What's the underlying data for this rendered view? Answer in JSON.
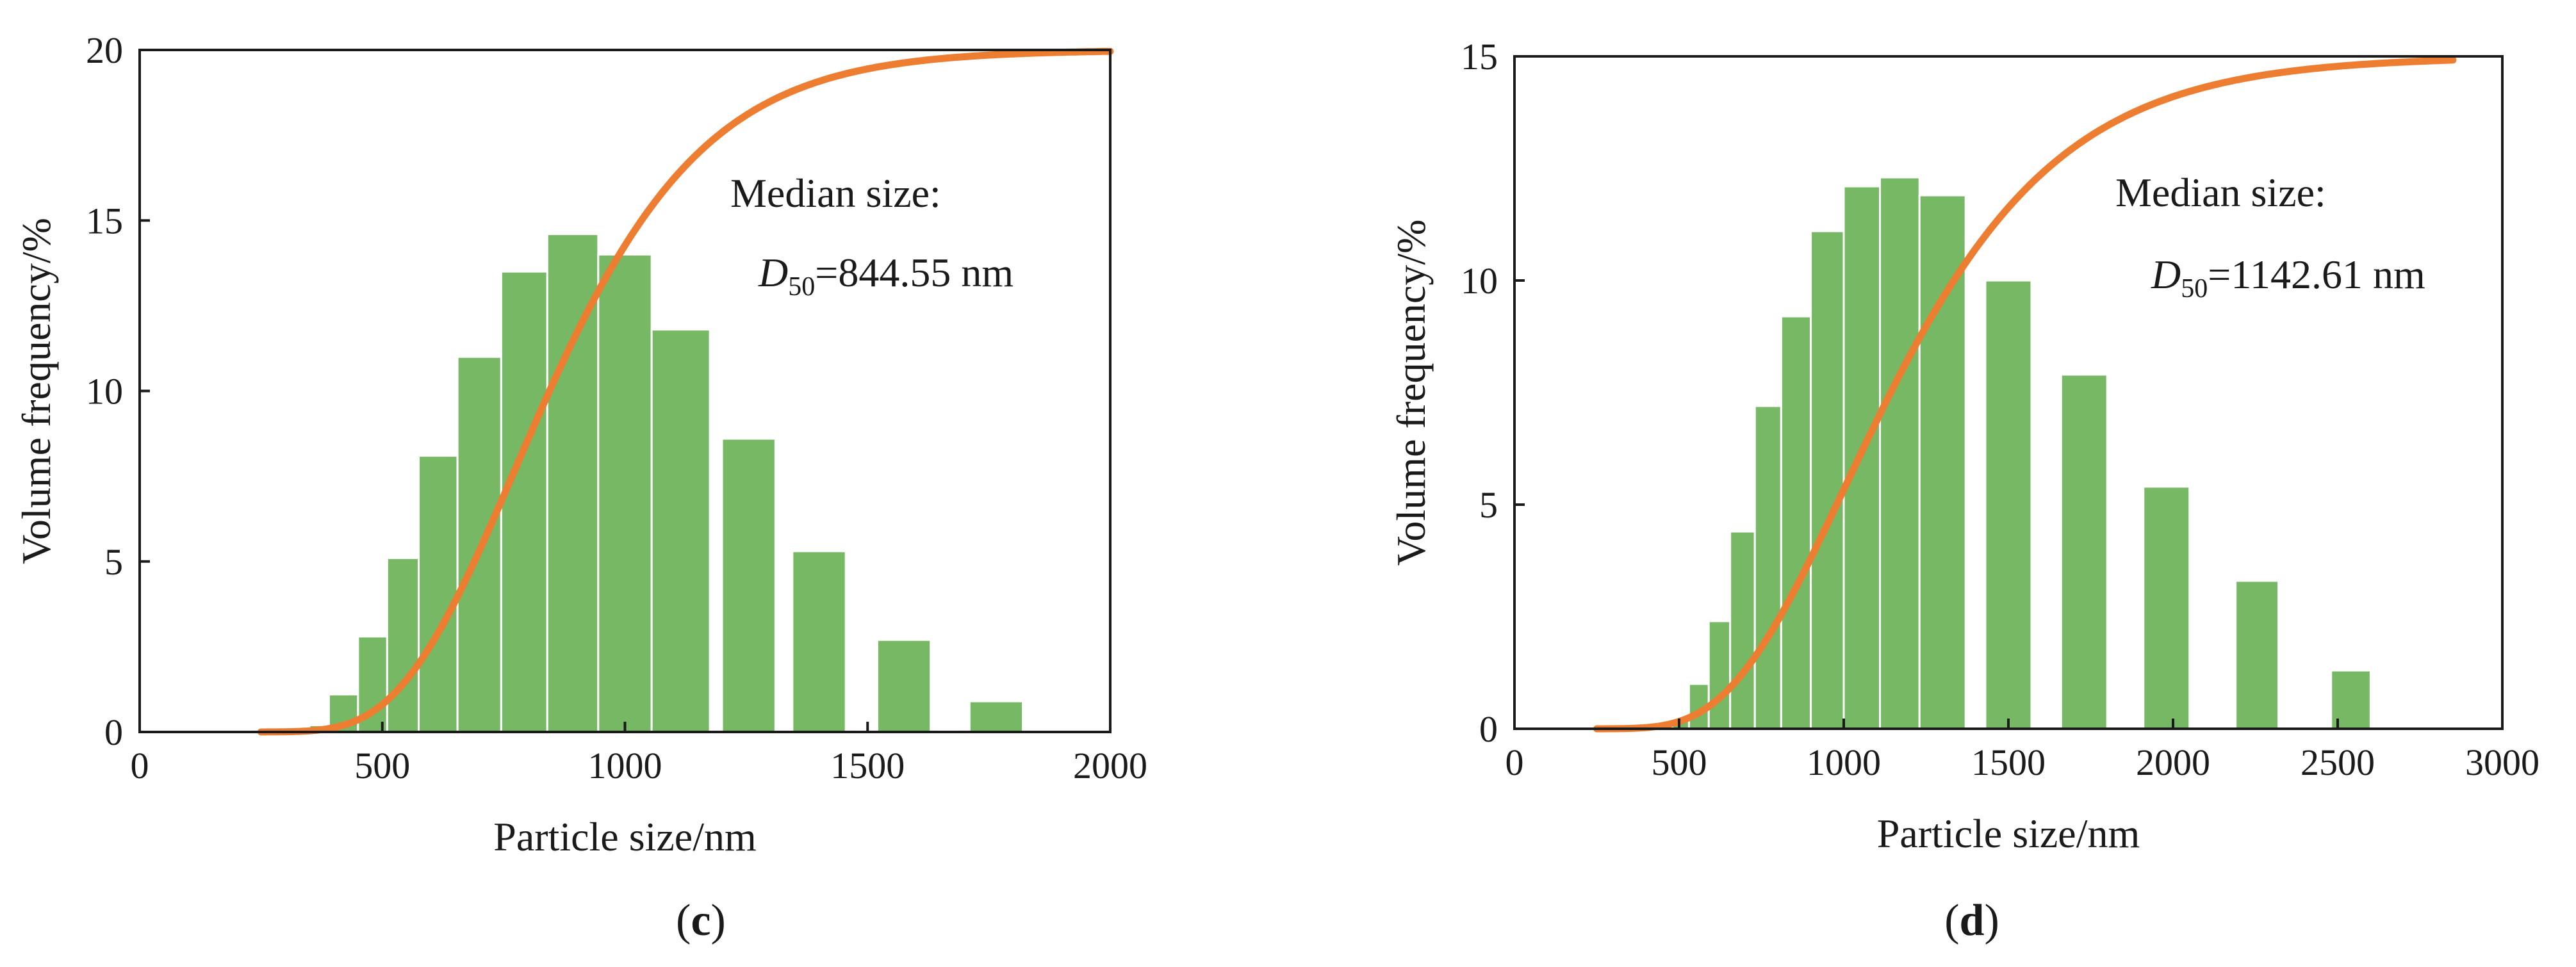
{
  "colors": {
    "bar": "#77b864",
    "curve": "#ed7d31",
    "axis": "#1a1a1a"
  },
  "chart_data": [
    {
      "type": "bar",
      "panel_label": "c",
      "xlabel": "Particle size/nm",
      "ylabel": "Volume frequency/%",
      "xlim": [
        0,
        2000
      ],
      "ylim": [
        0,
        20
      ],
      "xticks": [
        "0",
        "500",
        "1000",
        "1500",
        "2000"
      ],
      "yticks": [
        "0",
        "5",
        "10",
        "15",
        "20"
      ],
      "bars": [
        {
          "x0": 350,
          "x1": 390,
          "value": 0.2
        },
        {
          "x0": 390,
          "x1": 450,
          "value": 1.1
        },
        {
          "x0": 450,
          "x1": 510,
          "value": 2.8
        },
        {
          "x0": 510,
          "x1": 575,
          "value": 5.1
        },
        {
          "x0": 575,
          "x1": 655,
          "value": 8.1
        },
        {
          "x0": 655,
          "x1": 745,
          "value": 11.0
        },
        {
          "x0": 745,
          "x1": 840,
          "value": 13.5
        },
        {
          "x0": 840,
          "x1": 945,
          "value": 14.6
        },
        {
          "x0": 945,
          "x1": 1055,
          "value": 14.0
        },
        {
          "x0": 1055,
          "x1": 1175,
          "value": 11.8
        },
        {
          "x0": 1200,
          "x1": 1310,
          "value": 8.6
        },
        {
          "x0": 1345,
          "x1": 1455,
          "value": 5.3
        },
        {
          "x0": 1520,
          "x1": 1630,
          "value": 2.7
        },
        {
          "x0": 1710,
          "x1": 1820,
          "value": 0.9
        }
      ],
      "cumulative_curve": {
        "name": "Cumulative volume (scaled)",
        "median": 844.55,
        "spread": 0.3,
        "x_start": 250,
        "x_end": 2000,
        "scale_max": 20
      },
      "annotation": {
        "line1": "Median size:",
        "d_symbol": "D",
        "d_sub": "50",
        "d_value": "=844.55 nm"
      }
    },
    {
      "type": "bar",
      "panel_label": "d",
      "xlabel": "Particle size/nm",
      "ylabel": "Volume frequency/%",
      "xlim": [
        0,
        3000
      ],
      "ylim": [
        0,
        15
      ],
      "xticks": [
        "0",
        "500",
        "1000",
        "1500",
        "2000",
        "2500",
        "3000"
      ],
      "yticks": [
        "0",
        "5",
        "10",
        "15"
      ],
      "bars": [
        {
          "x0": 480,
          "x1": 530,
          "value": 0.2
        },
        {
          "x0": 530,
          "x1": 590,
          "value": 1.0
        },
        {
          "x0": 590,
          "x1": 655,
          "value": 2.4
        },
        {
          "x0": 655,
          "x1": 730,
          "value": 4.4
        },
        {
          "x0": 730,
          "x1": 810,
          "value": 7.2
        },
        {
          "x0": 810,
          "x1": 900,
          "value": 9.2
        },
        {
          "x0": 900,
          "x1": 1000,
          "value": 11.1
        },
        {
          "x0": 1000,
          "x1": 1110,
          "value": 12.1
        },
        {
          "x0": 1110,
          "x1": 1230,
          "value": 12.3
        },
        {
          "x0": 1230,
          "x1": 1370,
          "value": 11.9
        },
        {
          "x0": 1430,
          "x1": 1570,
          "value": 10.0
        },
        {
          "x0": 1660,
          "x1": 1800,
          "value": 7.9
        },
        {
          "x0": 1910,
          "x1": 2050,
          "value": 5.4
        },
        {
          "x0": 2190,
          "x1": 2320,
          "value": 3.3
        },
        {
          "x0": 2480,
          "x1": 2600,
          "value": 1.3
        }
      ],
      "cumulative_curve": {
        "name": "Cumulative volume (scaled)",
        "median": 1142.61,
        "spread": 0.36,
        "x_start": 250,
        "x_end": 2850,
        "scale_max": 15
      },
      "annotation": {
        "line1": "Median size:",
        "d_symbol": "D",
        "d_sub": "50",
        "d_value": "=1142.61 nm"
      }
    }
  ]
}
